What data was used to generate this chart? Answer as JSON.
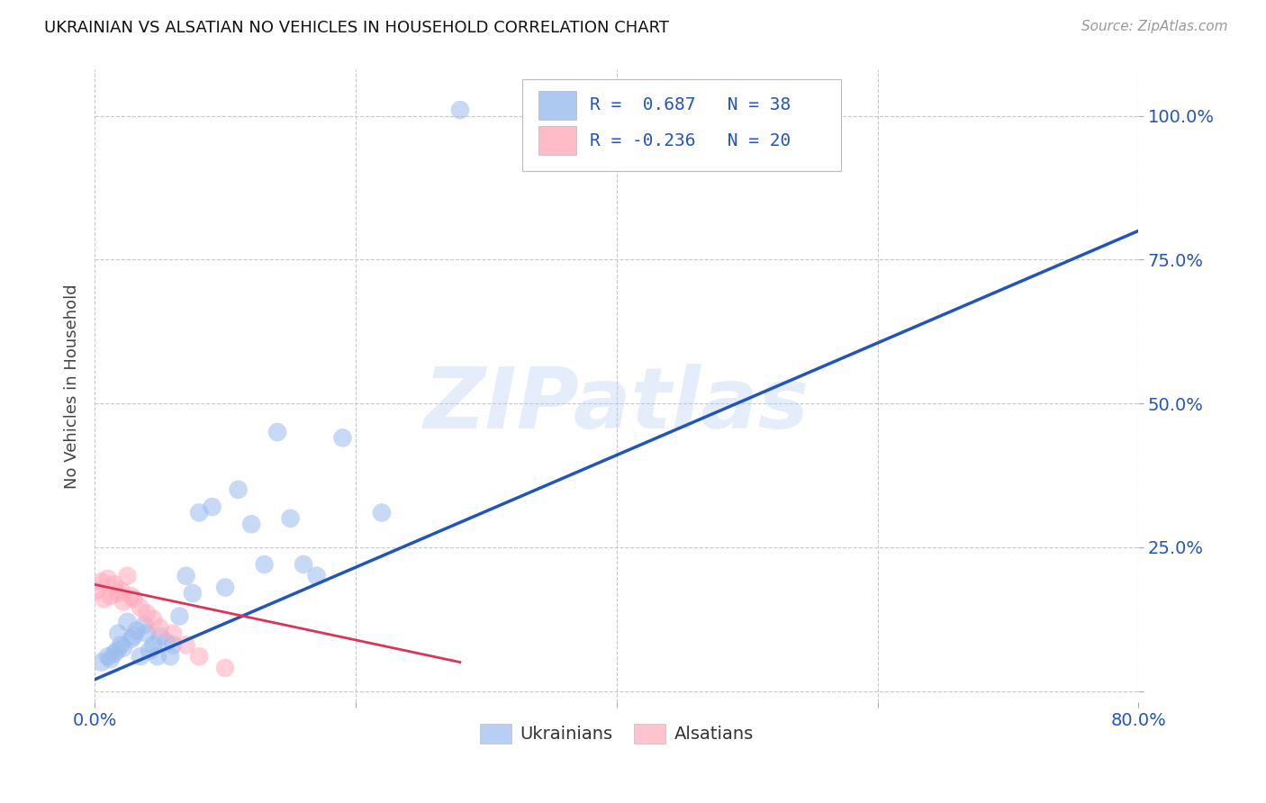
{
  "title": "UKRAINIAN VS ALSATIAN NO VEHICLES IN HOUSEHOLD CORRELATION CHART",
  "source": "Source: ZipAtlas.com",
  "ylabel": "No Vehicles in Household",
  "xlim": [
    0.0,
    0.8
  ],
  "ylim": [
    -0.02,
    1.08
  ],
  "xticks": [
    0.0,
    0.2,
    0.4,
    0.6,
    0.8
  ],
  "xticklabels": [
    "0.0%",
    "",
    "",
    "",
    "80.0%"
  ],
  "yticks": [
    0.0,
    0.25,
    0.5,
    0.75,
    1.0
  ],
  "yticklabels": [
    "",
    "25.0%",
    "50.0%",
    "75.0%",
    "100.0%"
  ],
  "background_color": "#ffffff",
  "grid_color": "#c8c8c8",
  "watermark_text": "ZIPatlas",
  "blue_fill": "#99bbee",
  "pink_fill": "#ffaabb",
  "blue_line": "#2255bb",
  "pink_line": "#dd3355",
  "blue_r": "R =  0.687",
  "blue_n": "N = 38",
  "pink_r": "R = -0.236",
  "pink_n": "N = 20",
  "ukrainians_x": [
    0.005,
    0.01,
    0.012,
    0.015,
    0.017,
    0.018,
    0.02,
    0.022,
    0.025,
    0.028,
    0.03,
    0.032,
    0.035,
    0.038,
    0.04,
    0.042,
    0.045,
    0.048,
    0.05,
    0.055,
    0.058,
    0.06,
    0.065,
    0.07,
    0.075,
    0.08,
    0.09,
    0.1,
    0.11,
    0.12,
    0.13,
    0.14,
    0.15,
    0.16,
    0.17,
    0.19,
    0.22,
    0.28
  ],
  "ukrainians_y": [
    0.05,
    0.06,
    0.055,
    0.065,
    0.07,
    0.1,
    0.08,
    0.075,
    0.12,
    0.09,
    0.095,
    0.105,
    0.06,
    0.115,
    0.1,
    0.07,
    0.08,
    0.06,
    0.095,
    0.085,
    0.06,
    0.08,
    0.13,
    0.2,
    0.17,
    0.31,
    0.32,
    0.18,
    0.35,
    0.29,
    0.22,
    0.45,
    0.3,
    0.22,
    0.2,
    0.44,
    0.31,
    1.01
  ],
  "alsatians_x": [
    0.002,
    0.005,
    0.007,
    0.01,
    0.012,
    0.015,
    0.018,
    0.02,
    0.022,
    0.025,
    0.028,
    0.03,
    0.035,
    0.04,
    0.045,
    0.05,
    0.06,
    0.07,
    0.08,
    0.1
  ],
  "alsatians_y": [
    0.175,
    0.19,
    0.16,
    0.195,
    0.165,
    0.185,
    0.17,
    0.175,
    0.155,
    0.2,
    0.165,
    0.16,
    0.145,
    0.135,
    0.125,
    0.11,
    0.1,
    0.08,
    0.06,
    0.04
  ],
  "blue_line_x": [
    0.0,
    0.8
  ],
  "blue_line_y": [
    0.02,
    0.8
  ],
  "pink_line_x": [
    0.0,
    0.28
  ],
  "pink_line_y": [
    0.185,
    0.05
  ]
}
